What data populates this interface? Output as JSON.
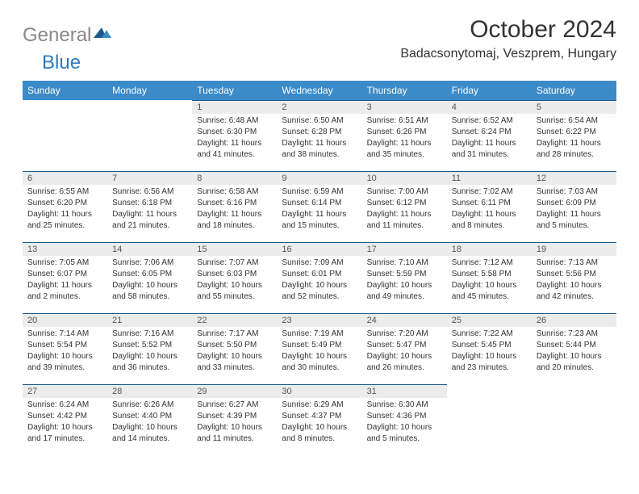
{
  "logo": {
    "word1": "General",
    "word2": "Blue"
  },
  "title": "October 2024",
  "location": "Badacsonytomaj, Veszprem, Hungary",
  "colors": {
    "header_bg": "#3b8bc9",
    "header_text": "#ffffff",
    "daynum_bg": "#ececec",
    "daynum_border": "#1a5a8a",
    "logo_gray": "#888888",
    "logo_blue": "#2b7bbf"
  },
  "weekdays": [
    "Sunday",
    "Monday",
    "Tuesday",
    "Wednesday",
    "Thursday",
    "Friday",
    "Saturday"
  ],
  "weeks": [
    [
      null,
      null,
      {
        "n": "1",
        "sr": "Sunrise: 6:48 AM",
        "ss": "Sunset: 6:30 PM",
        "d1": "Daylight: 11 hours",
        "d2": "and 41 minutes."
      },
      {
        "n": "2",
        "sr": "Sunrise: 6:50 AM",
        "ss": "Sunset: 6:28 PM",
        "d1": "Daylight: 11 hours",
        "d2": "and 38 minutes."
      },
      {
        "n": "3",
        "sr": "Sunrise: 6:51 AM",
        "ss": "Sunset: 6:26 PM",
        "d1": "Daylight: 11 hours",
        "d2": "and 35 minutes."
      },
      {
        "n": "4",
        "sr": "Sunrise: 6:52 AM",
        "ss": "Sunset: 6:24 PM",
        "d1": "Daylight: 11 hours",
        "d2": "and 31 minutes."
      },
      {
        "n": "5",
        "sr": "Sunrise: 6:54 AM",
        "ss": "Sunset: 6:22 PM",
        "d1": "Daylight: 11 hours",
        "d2": "and 28 minutes."
      }
    ],
    [
      {
        "n": "6",
        "sr": "Sunrise: 6:55 AM",
        "ss": "Sunset: 6:20 PM",
        "d1": "Daylight: 11 hours",
        "d2": "and 25 minutes."
      },
      {
        "n": "7",
        "sr": "Sunrise: 6:56 AM",
        "ss": "Sunset: 6:18 PM",
        "d1": "Daylight: 11 hours",
        "d2": "and 21 minutes."
      },
      {
        "n": "8",
        "sr": "Sunrise: 6:58 AM",
        "ss": "Sunset: 6:16 PM",
        "d1": "Daylight: 11 hours",
        "d2": "and 18 minutes."
      },
      {
        "n": "9",
        "sr": "Sunrise: 6:59 AM",
        "ss": "Sunset: 6:14 PM",
        "d1": "Daylight: 11 hours",
        "d2": "and 15 minutes."
      },
      {
        "n": "10",
        "sr": "Sunrise: 7:00 AM",
        "ss": "Sunset: 6:12 PM",
        "d1": "Daylight: 11 hours",
        "d2": "and 11 minutes."
      },
      {
        "n": "11",
        "sr": "Sunrise: 7:02 AM",
        "ss": "Sunset: 6:11 PM",
        "d1": "Daylight: 11 hours",
        "d2": "and 8 minutes."
      },
      {
        "n": "12",
        "sr": "Sunrise: 7:03 AM",
        "ss": "Sunset: 6:09 PM",
        "d1": "Daylight: 11 hours",
        "d2": "and 5 minutes."
      }
    ],
    [
      {
        "n": "13",
        "sr": "Sunrise: 7:05 AM",
        "ss": "Sunset: 6:07 PM",
        "d1": "Daylight: 11 hours",
        "d2": "and 2 minutes."
      },
      {
        "n": "14",
        "sr": "Sunrise: 7:06 AM",
        "ss": "Sunset: 6:05 PM",
        "d1": "Daylight: 10 hours",
        "d2": "and 58 minutes."
      },
      {
        "n": "15",
        "sr": "Sunrise: 7:07 AM",
        "ss": "Sunset: 6:03 PM",
        "d1": "Daylight: 10 hours",
        "d2": "and 55 minutes."
      },
      {
        "n": "16",
        "sr": "Sunrise: 7:09 AM",
        "ss": "Sunset: 6:01 PM",
        "d1": "Daylight: 10 hours",
        "d2": "and 52 minutes."
      },
      {
        "n": "17",
        "sr": "Sunrise: 7:10 AM",
        "ss": "Sunset: 5:59 PM",
        "d1": "Daylight: 10 hours",
        "d2": "and 49 minutes."
      },
      {
        "n": "18",
        "sr": "Sunrise: 7:12 AM",
        "ss": "Sunset: 5:58 PM",
        "d1": "Daylight: 10 hours",
        "d2": "and 45 minutes."
      },
      {
        "n": "19",
        "sr": "Sunrise: 7:13 AM",
        "ss": "Sunset: 5:56 PM",
        "d1": "Daylight: 10 hours",
        "d2": "and 42 minutes."
      }
    ],
    [
      {
        "n": "20",
        "sr": "Sunrise: 7:14 AM",
        "ss": "Sunset: 5:54 PM",
        "d1": "Daylight: 10 hours",
        "d2": "and 39 minutes."
      },
      {
        "n": "21",
        "sr": "Sunrise: 7:16 AM",
        "ss": "Sunset: 5:52 PM",
        "d1": "Daylight: 10 hours",
        "d2": "and 36 minutes."
      },
      {
        "n": "22",
        "sr": "Sunrise: 7:17 AM",
        "ss": "Sunset: 5:50 PM",
        "d1": "Daylight: 10 hours",
        "d2": "and 33 minutes."
      },
      {
        "n": "23",
        "sr": "Sunrise: 7:19 AM",
        "ss": "Sunset: 5:49 PM",
        "d1": "Daylight: 10 hours",
        "d2": "and 30 minutes."
      },
      {
        "n": "24",
        "sr": "Sunrise: 7:20 AM",
        "ss": "Sunset: 5:47 PM",
        "d1": "Daylight: 10 hours",
        "d2": "and 26 minutes."
      },
      {
        "n": "25",
        "sr": "Sunrise: 7:22 AM",
        "ss": "Sunset: 5:45 PM",
        "d1": "Daylight: 10 hours",
        "d2": "and 23 minutes."
      },
      {
        "n": "26",
        "sr": "Sunrise: 7:23 AM",
        "ss": "Sunset: 5:44 PM",
        "d1": "Daylight: 10 hours",
        "d2": "and 20 minutes."
      }
    ],
    [
      {
        "n": "27",
        "sr": "Sunrise: 6:24 AM",
        "ss": "Sunset: 4:42 PM",
        "d1": "Daylight: 10 hours",
        "d2": "and 17 minutes."
      },
      {
        "n": "28",
        "sr": "Sunrise: 6:26 AM",
        "ss": "Sunset: 4:40 PM",
        "d1": "Daylight: 10 hours",
        "d2": "and 14 minutes."
      },
      {
        "n": "29",
        "sr": "Sunrise: 6:27 AM",
        "ss": "Sunset: 4:39 PM",
        "d1": "Daylight: 10 hours",
        "d2": "and 11 minutes."
      },
      {
        "n": "30",
        "sr": "Sunrise: 6:29 AM",
        "ss": "Sunset: 4:37 PM",
        "d1": "Daylight: 10 hours",
        "d2": "and 8 minutes."
      },
      {
        "n": "31",
        "sr": "Sunrise: 6:30 AM",
        "ss": "Sunset: 4:36 PM",
        "d1": "Daylight: 10 hours",
        "d2": "and 5 minutes."
      },
      null,
      null
    ]
  ]
}
